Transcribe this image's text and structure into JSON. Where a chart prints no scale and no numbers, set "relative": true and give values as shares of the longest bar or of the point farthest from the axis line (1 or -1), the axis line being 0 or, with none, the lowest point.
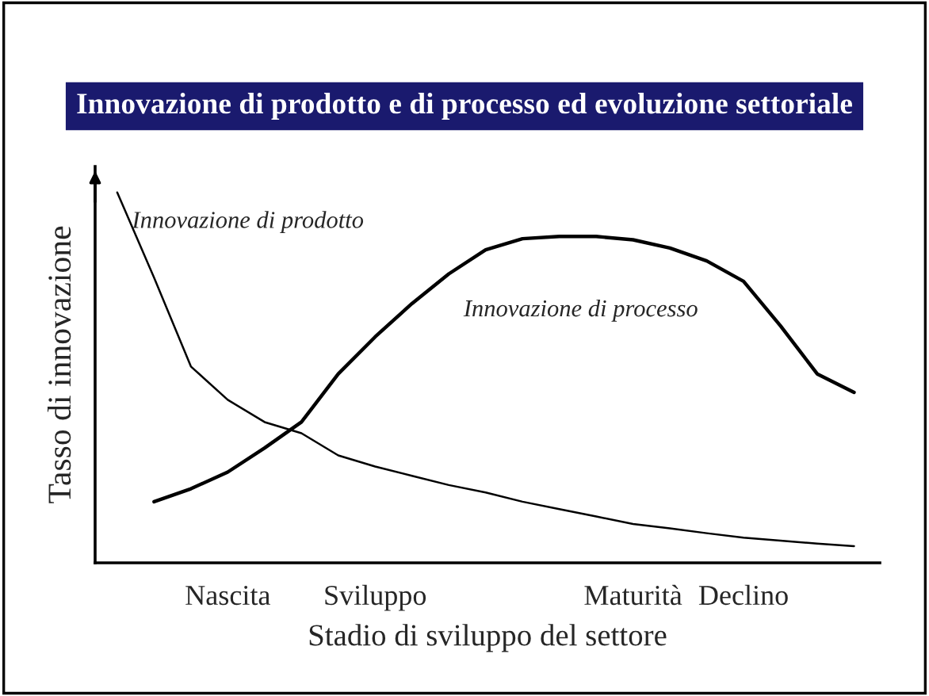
{
  "chart_data": {
    "type": "line",
    "title": "Innovazione di prodotto e di processo ed evoluzione settoriale",
    "xlabel": "Stadio di sviluppo del settore",
    "ylabel": "Tasso di innovazione",
    "relative": true,
    "tick_labels": "x",
    "grid": false,
    "legend": false,
    "marker": "none",
    "line_style": "solid",
    "categories": [
      null,
      null,
      null,
      "Nascita",
      null,
      null,
      null,
      "Sviluppo",
      null,
      null,
      null,
      null,
      null,
      null,
      "Maturità",
      null,
      null,
      "Declino",
      null,
      null,
      null
    ],
    "series": [
      {
        "name": "Innovazione di prodotto",
        "color": "#000000",
        "values": [
          1.0,
          0.77,
          0.53,
          0.44,
          0.38,
          0.35,
          0.29,
          0.26,
          0.235,
          0.21,
          0.19,
          0.165,
          0.145,
          0.125,
          0.105,
          0.093,
          0.08,
          0.068,
          0.06,
          0.052,
          0.045
        ]
      },
      {
        "name": "Innovazione di processo",
        "color": "#000000",
        "values": [
          null,
          0.165,
          0.2,
          0.245,
          0.31,
          0.38,
          0.51,
          0.61,
          0.7,
          0.78,
          0.845,
          0.875,
          0.881,
          0.881,
          0.872,
          0.85,
          0.815,
          0.76,
          0.64,
          0.51,
          0.46
        ]
      }
    ]
  }
}
